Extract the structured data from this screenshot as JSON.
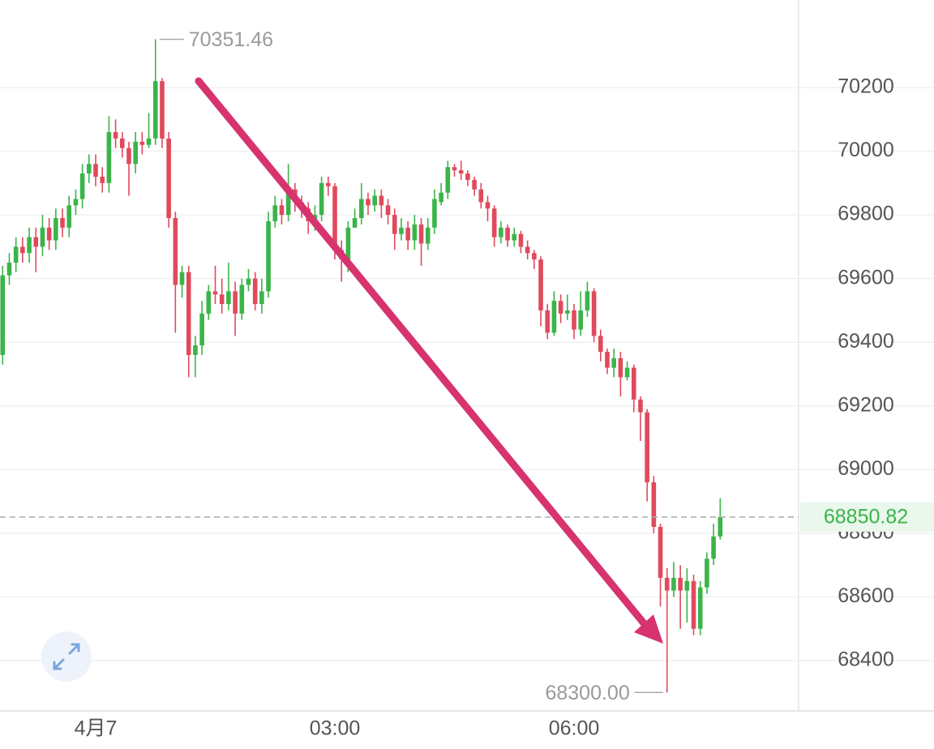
{
  "chart_data": {
    "type": "candlestick",
    "x": [
      -70,
      -65,
      -60,
      -55,
      -50,
      -45,
      -40,
      -35,
      -30,
      -25,
      -20,
      -15,
      -10,
      -5,
      0,
      5,
      10,
      15,
      20,
      25,
      30,
      35,
      40,
      45,
      50,
      55,
      60,
      65,
      70,
      75,
      80,
      85,
      90,
      95,
      100,
      105,
      110,
      115,
      120,
      125,
      130,
      135,
      140,
      145,
      150,
      155,
      160,
      165,
      170,
      175,
      180,
      185,
      190,
      195,
      200,
      205,
      210,
      215,
      220,
      225,
      230,
      235,
      240,
      245,
      250,
      255,
      260,
      265,
      270,
      275,
      280,
      285,
      290,
      295,
      300,
      305,
      310,
      315,
      320,
      325,
      330,
      335,
      340,
      345,
      350,
      355,
      360,
      365,
      370,
      375,
      380,
      385,
      390,
      395,
      400,
      405,
      410,
      415,
      420,
      425,
      430,
      435,
      440,
      445,
      450,
      455,
      460,
      465,
      470
    ],
    "open": [
      69360,
      69610,
      69650,
      69700,
      69680,
      69730,
      69700,
      69760,
      69720,
      69790,
      69760,
      69830,
      69850,
      69930,
      69960,
      69920,
      69900,
      70060,
      70040,
      70010,
      69960,
      70030,
      70020,
      70040,
      70220,
      70040,
      69790,
      69580,
      69620,
      69360,
      69390,
      69490,
      69560,
      69550,
      69520,
      69560,
      69490,
      69580,
      69600,
      69520,
      69560,
      69780,
      69830,
      69800,
      69880,
      69840,
      69820,
      69780,
      69800,
      69900,
      69890,
      69690,
      69660,
      69760,
      69790,
      69850,
      69830,
      69860,
      69830,
      69800,
      69740,
      69760,
      69720,
      69770,
      69710,
      69760,
      69840,
      69870,
      69950,
      69940,
      69930,
      69910,
      69880,
      69840,
      69820,
      69730,
      69760,
      69720,
      69740,
      69700,
      69680,
      69660,
      69500,
      69430,
      69530,
      69490,
      69500,
      69440,
      69500,
      69560,
      69420,
      69370,
      69320,
      69350,
      69290,
      69320,
      69220,
      69180,
      68960,
      68820,
      68660,
      68620,
      68660,
      68620,
      68650,
      68500,
      68630,
      68720,
      68790
    ],
    "high": [
      69640,
      69680,
      69730,
      69730,
      69760,
      69760,
      69800,
      69790,
      69820,
      69820,
      69860,
      69880,
      69960,
      69990,
      69990,
      69950,
      70110,
      70100,
      70060,
      70030,
      70060,
      70060,
      70120,
      70351.46,
      70230,
      70060,
      69810,
      69640,
      69640,
      69420,
      69530,
      69580,
      69640,
      69600,
      69650,
      69590,
      69600,
      69630,
      69620,
      69600,
      69810,
      69860,
      69850,
      69960,
      69900,
      69860,
      69840,
      69830,
      69920,
      69920,
      69900,
      69720,
      69780,
      69820,
      69900,
      69870,
      69880,
      69880,
      69850,
      69820,
      69790,
      69780,
      69800,
      69790,
      69790,
      69880,
      69900,
      69970,
      69960,
      69970,
      69940,
      69920,
      69900,
      69860,
      69830,
      69780,
      69770,
      69760,
      69750,
      69720,
      69690,
      69670,
      69520,
      69560,
      69550,
      69550,
      69520,
      69560,
      69590,
      69570,
      69440,
      69380,
      69380,
      69370,
      69340,
      69330,
      69230,
      69190,
      68980,
      68830,
      68690,
      68710,
      68700,
      68690,
      68670,
      68650,
      68740,
      68830,
      68910
    ],
    "low": [
      69330,
      69580,
      69620,
      69650,
      69650,
      69620,
      69670,
      69690,
      69690,
      69730,
      69730,
      69800,
      69820,
      69900,
      69890,
      69870,
      69870,
      70010,
      69980,
      69860,
      69930,
      69990,
      70010,
      70020,
      70010,
      69760,
      69430,
      69540,
      69290,
      69290,
      69360,
      69470,
      69520,
      69490,
      69500,
      69420,
      69470,
      69560,
      69500,
      69490,
      69540,
      69760,
      69770,
      69780,
      69810,
      69790,
      69740,
      69750,
      69780,
      69860,
      69660,
      69590,
      69620,
      69760,
      69770,
      69800,
      69810,
      69790,
      69770,
      69690,
      69720,
      69690,
      69690,
      69640,
      69690,
      69740,
      69830,
      69850,
      69920,
      69910,
      69890,
      69860,
      69820,
      69780,
      69700,
      69710,
      69700,
      69700,
      69680,
      69660,
      69630,
      69450,
      69410,
      69420,
      69460,
      69470,
      69410,
      69420,
      69480,
      69400,
      69340,
      69300,
      69290,
      69230,
      69280,
      69180,
      69090,
      68900,
      68800,
      68570,
      68300,
      68600,
      68500,
      68520,
      68480,
      68480,
      68610,
      68700,
      68780
    ],
    "close": [
      69610,
      69650,
      69700,
      69680,
      69730,
      69700,
      69760,
      69720,
      69790,
      69760,
      69830,
      69850,
      69930,
      69960,
      69920,
      69900,
      70060,
      70040,
      70010,
      69960,
      70030,
      70020,
      70040,
      70220,
      70040,
      69790,
      69580,
      69620,
      69360,
      69390,
      69490,
      69560,
      69550,
      69520,
      69560,
      69490,
      69580,
      69600,
      69520,
      69560,
      69780,
      69830,
      69800,
      69880,
      69840,
      69820,
      69780,
      69800,
      69900,
      69890,
      69690,
      69660,
      69760,
      69790,
      69850,
      69830,
      69860,
      69830,
      69800,
      69740,
      69760,
      69720,
      69770,
      69710,
      69760,
      69850,
      69870,
      69950,
      69940,
      69930,
      69910,
      69880,
      69840,
      69820,
      69730,
      69760,
      69720,
      69740,
      69700,
      69680,
      69660,
      69500,
      69430,
      69530,
      69490,
      69500,
      69440,
      69500,
      69560,
      69420,
      69370,
      69320,
      69350,
      69290,
      69320,
      69220,
      69180,
      68960,
      68820,
      68660,
      68620,
      68660,
      68620,
      68650,
      68500,
      68630,
      68720,
      68790,
      68850.82
    ],
    "up_color": "#3bb44a",
    "down_color": "#e04a5c",
    "xlim": [
      -72,
      529
    ],
    "xticks": [
      {
        "value": 0,
        "label": "4月7"
      },
      {
        "value": 180,
        "label": "03:00"
      },
      {
        "value": 360,
        "label": "06:00"
      }
    ],
    "ylim": [
      68242,
      70475
    ],
    "yticks": [
      68400,
      68600,
      68800,
      69000,
      69200,
      69400,
      69600,
      69800,
      70000,
      70200
    ],
    "grid": true,
    "annotations": [
      {
        "value": 70351.46,
        "label": "70351.46"
      },
      {
        "value": 68300,
        "label": "68300.00"
      }
    ],
    "last_price": {
      "value": 68850.82,
      "label": "68850.82"
    }
  }
}
